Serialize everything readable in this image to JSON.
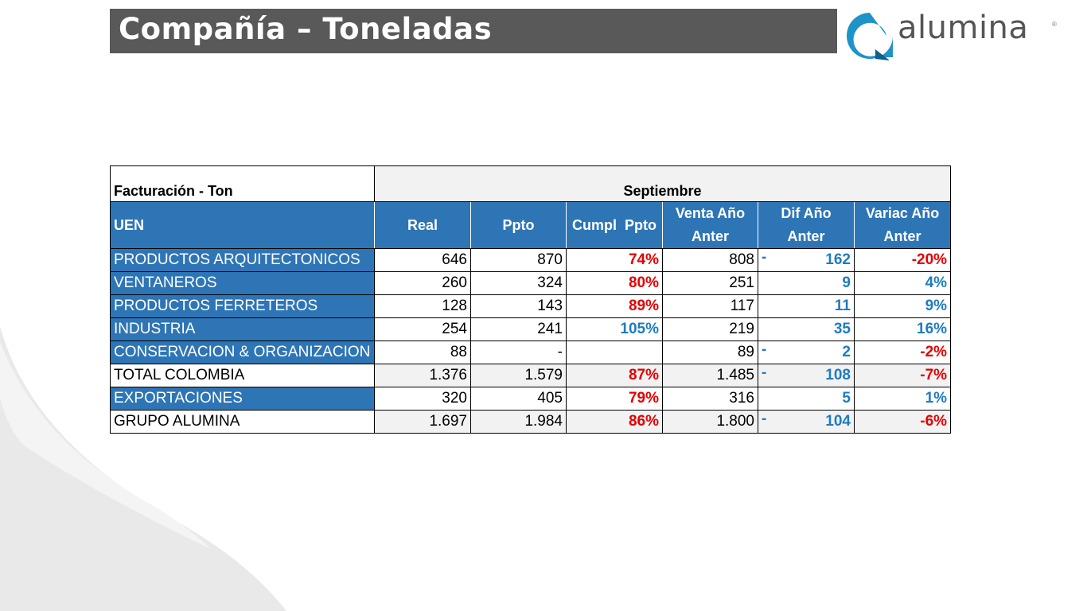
{
  "header": {
    "title": "Compañía – Toneladas",
    "logo_text": "alumina",
    "logo_mark": "®"
  },
  "colors": {
    "title_bar": "#595959",
    "header_blue": "#2e75b6",
    "negative_red": "#e60000",
    "positive_blue": "#1f7bc1",
    "logo_teal": "#1e93c8"
  },
  "table": {
    "label": "Facturación - Ton",
    "month": "Septiembre",
    "columns": [
      "UEN",
      "Real",
      "Ppto",
      "Cumpl  Ppto",
      "Venta Año Anter",
      "Dif Año Anter",
      "Variac Año Anter"
    ],
    "rows": [
      {
        "uen": "PRODUCTOS ARQUITECTONICOS",
        "real": "646",
        "ppto": "870",
        "cumpl": "74%",
        "venta": "808",
        "dif_sign": "-",
        "dif": "162",
        "variac": "-20%"
      },
      {
        "uen": "VENTANEROS",
        "real": "260",
        "ppto": "324",
        "cumpl": "80%",
        "venta": "251",
        "dif_sign": "",
        "dif": "9",
        "variac": "4%"
      },
      {
        "uen": "PRODUCTOS FERRETEROS",
        "real": "128",
        "ppto": "143",
        "cumpl": "89%",
        "venta": "117",
        "dif_sign": "",
        "dif": "11",
        "variac": "9%"
      },
      {
        "uen": "INDUSTRIA",
        "real": "254",
        "ppto": "241",
        "cumpl": "105%",
        "venta": "219",
        "dif_sign": "",
        "dif": "35",
        "variac": "16%"
      },
      {
        "uen": "CONSERVACION & ORGANIZACION",
        "real": "88",
        "ppto": "-",
        "cumpl": "",
        "venta": "89",
        "dif_sign": "-",
        "dif": "2",
        "variac": "-2%"
      },
      {
        "uen": "TOTAL COLOMBIA",
        "real": "1.376",
        "ppto": "1.579",
        "cumpl": "87%",
        "venta": "1.485",
        "dif_sign": "-",
        "dif": "108",
        "variac": "-7%"
      },
      {
        "uen": "EXPORTACIONES",
        "real": "320",
        "ppto": "405",
        "cumpl": "79%",
        "venta": "316",
        "dif_sign": "",
        "dif": "5",
        "variac": "1%"
      },
      {
        "uen": "GRUPO ALUMINA",
        "real": "1.697",
        "ppto": "1.984",
        "cumpl": "86%",
        "venta": "1.800",
        "dif_sign": "-",
        "dif": "104",
        "variac": "-6%"
      }
    ]
  }
}
